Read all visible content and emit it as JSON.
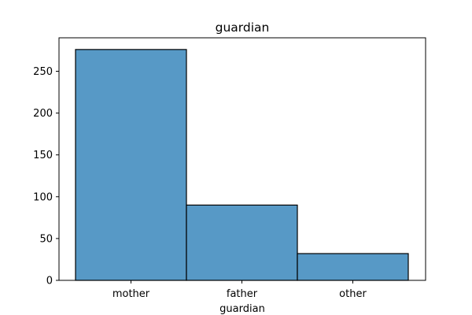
{
  "chart_data": {
    "type": "bar",
    "title": "guardian",
    "xlabel": "guardian",
    "ylabel": "",
    "categories": [
      "mother",
      "father",
      "other"
    ],
    "values": [
      276,
      90,
      32
    ],
    "ylim": [
      0,
      290
    ],
    "yticks": [
      0,
      50,
      100,
      150,
      200,
      250
    ],
    "grid": false,
    "bar_color": "#5799c6",
    "edge_color": "#000000"
  }
}
